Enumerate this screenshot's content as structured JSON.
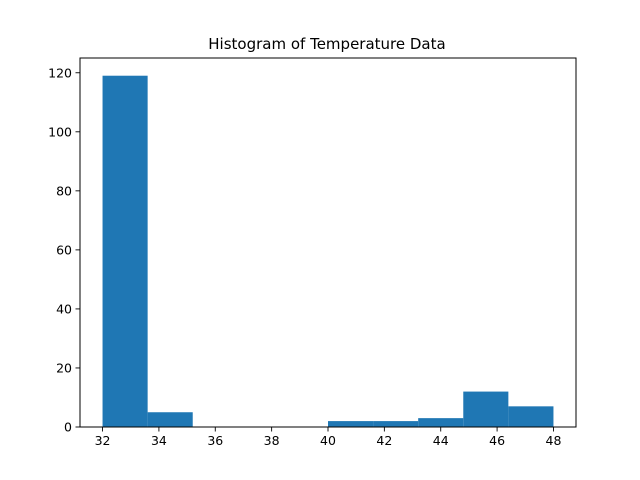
{
  "chart_data": {
    "type": "bar",
    "title": "Histogram of Temperature Data",
    "xlabel": "",
    "ylabel": "",
    "bin_edges": [
      32.0,
      33.6,
      35.2,
      36.8,
      38.4,
      40.0,
      41.6,
      43.2,
      44.8,
      46.4,
      48.0
    ],
    "counts": [
      119,
      5,
      0,
      0,
      0,
      2,
      2,
      3,
      12,
      7
    ],
    "xlim": [
      31.2,
      48.8
    ],
    "ylim": [
      0,
      125
    ],
    "xticks": [
      32,
      34,
      36,
      38,
      40,
      42,
      44,
      46,
      48
    ],
    "yticks": [
      0,
      20,
      40,
      60,
      80,
      100,
      120
    ],
    "bar_color": "#1f77b4",
    "grid": false,
    "legend": false
  }
}
